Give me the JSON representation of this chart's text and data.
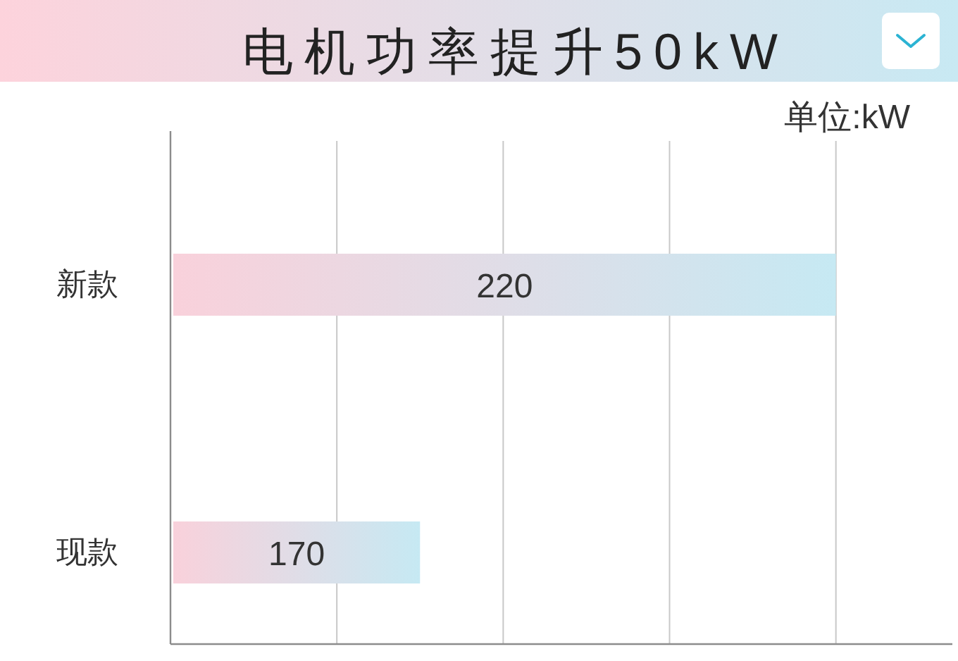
{
  "chart_data": {
    "type": "bar",
    "orientation": "horizontal",
    "title": "电机功率提升50kW",
    "annotations": [
      "单位:kW"
    ],
    "categories": [
      "新款",
      "现款"
    ],
    "values": [
      220,
      170
    ],
    "color": "#f9d1db",
    "data_labels": true,
    "xlim": [
      140,
      234
    ],
    "xticks": [
      {
        "value": 160,
        "label": null
      },
      {
        "value": 180,
        "label": null
      },
      {
        "value": 200,
        "label": null
      },
      {
        "value": 220,
        "label": null
      }
    ],
    "grid": "x",
    "tick_labels": "y"
  }
}
